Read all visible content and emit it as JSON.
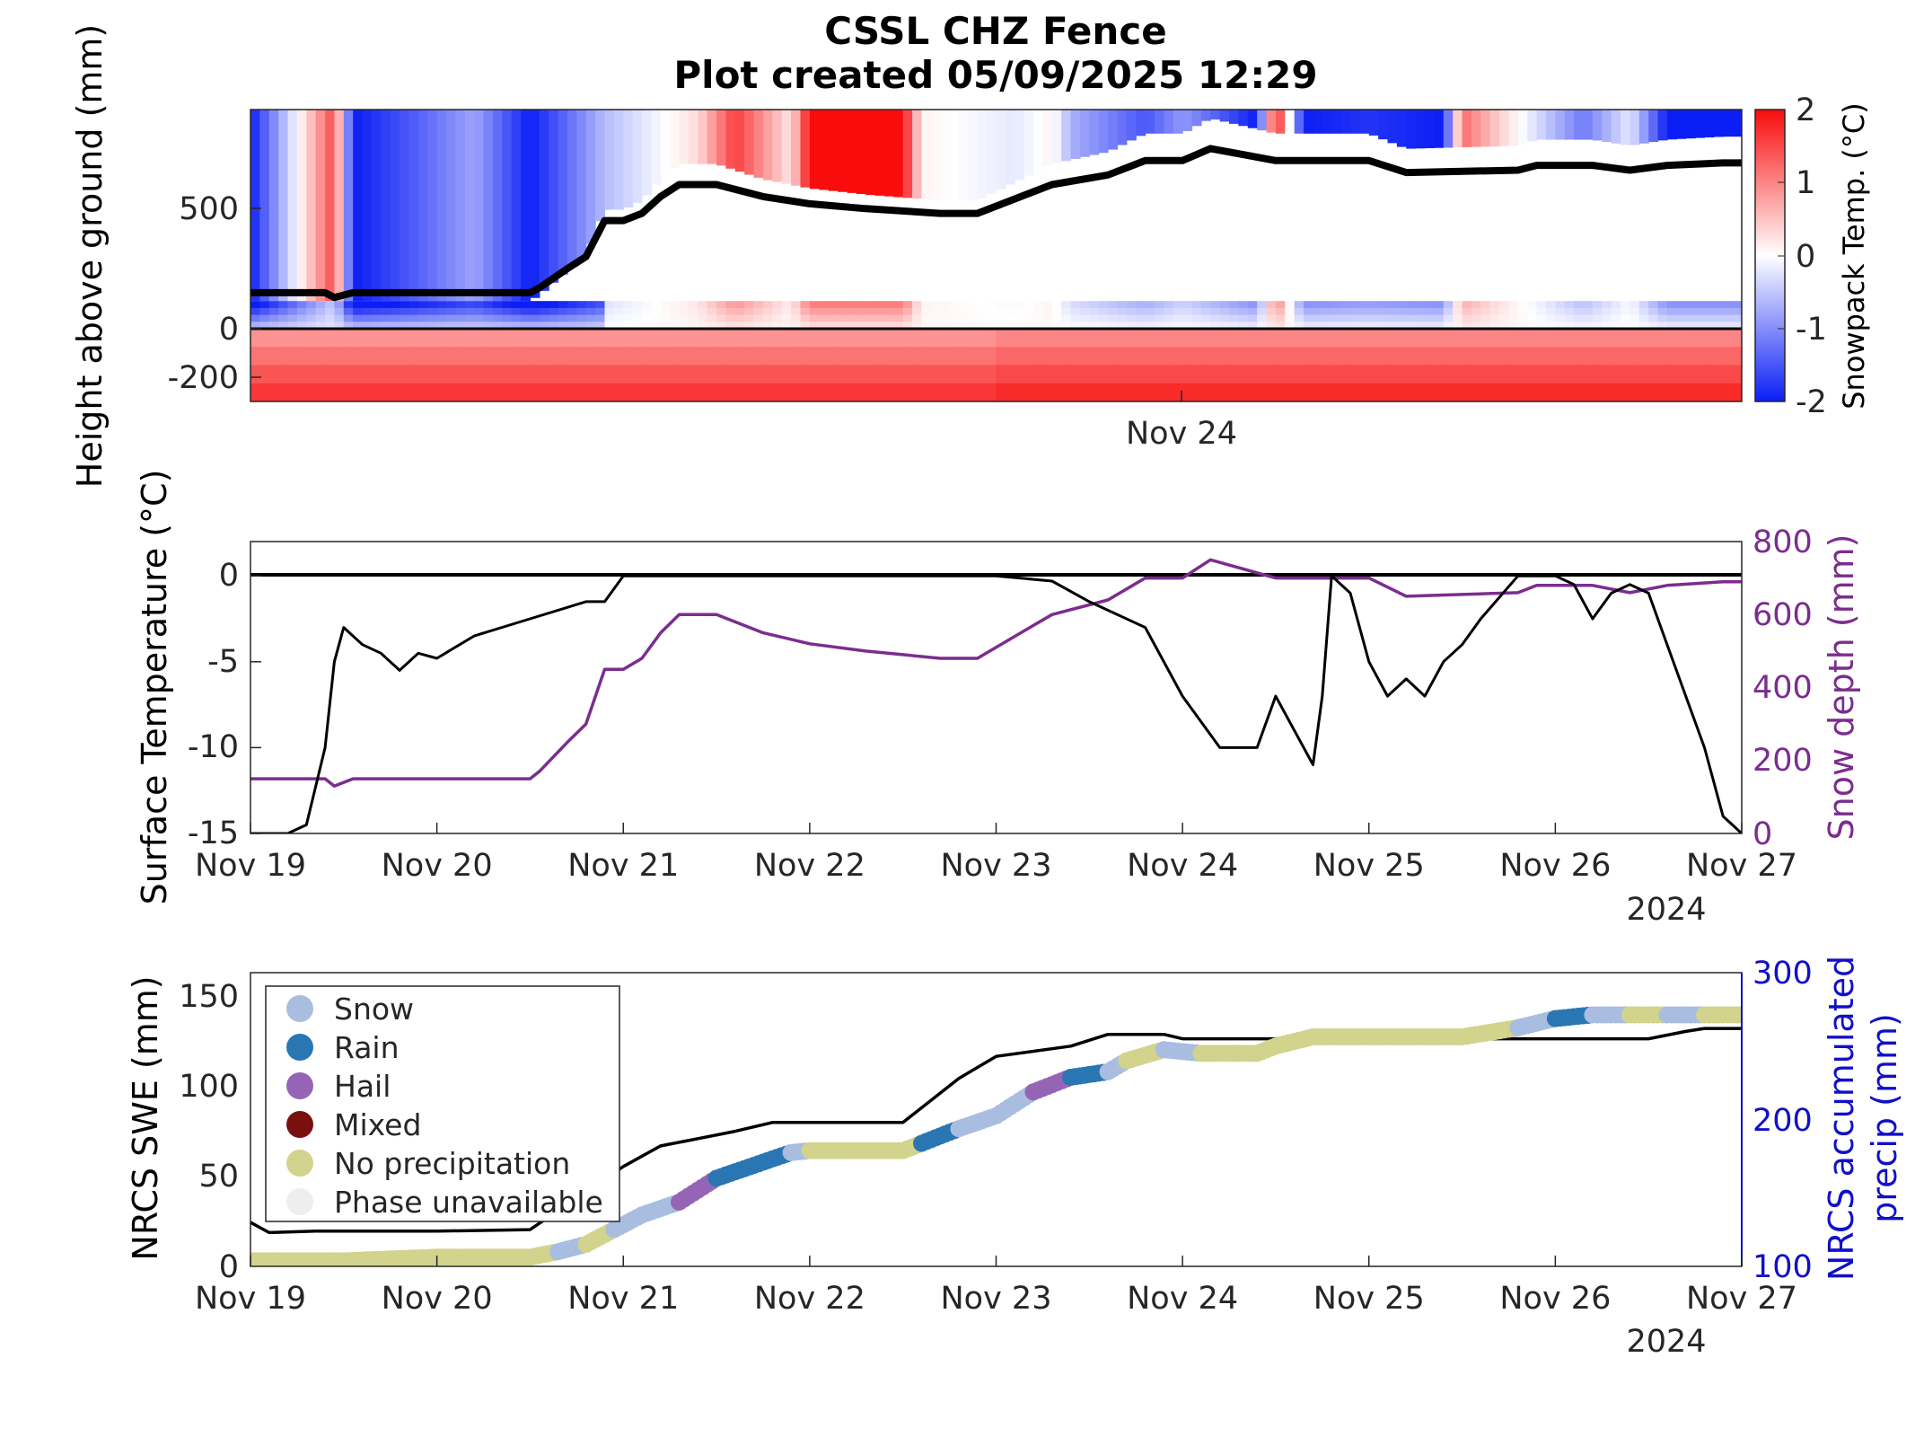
{
  "title_line1": "CSSL CHZ Fence",
  "title_line2": "Plot created 05/09/2025 12:29",
  "colors": {
    "cold": "#0b1ef5",
    "warm": "#f80c0c",
    "purple": "#7b2d8e",
    "blue_axis": "#1010c8",
    "snow": "#a8bde0",
    "rain": "#2a76b2",
    "hail": "#9465b5",
    "mixed": "#7a0f0f",
    "none": "#d2d38c",
    "unavail": "#eeeeee"
  },
  "chart_data": [
    {
      "type": "heatmap",
      "ylabel": "Height above ground (mm)",
      "colorbar_label": "Snowpack Temp. (°C)",
      "colorbar_range": [
        -2,
        2
      ],
      "colorbar_ticks": [
        "2",
        "1",
        "0",
        "-1",
        "-2"
      ],
      "yticks": [
        "500",
        "0",
        "-200"
      ],
      "xtick_labels": [
        "Nov 24"
      ],
      "ylim": [
        -300,
        900
      ],
      "snow_depth_line": {
        "x_days_after_nov19": [
          0,
          0.4,
          0.45,
          0.55,
          1.5,
          1.55,
          1.7,
          1.8,
          1.9,
          2.0,
          2.1,
          2.2,
          2.3,
          2.5,
          2.75,
          3.0,
          3.3,
          3.7,
          3.9,
          4.2,
          4.3,
          4.6,
          4.8,
          5.0,
          5.15,
          5.5,
          5.7,
          6.0,
          6.2,
          6.8,
          6.9,
          7.0,
          7.2,
          7.4,
          7.6,
          7.9,
          8.0
        ],
        "y_mm": [
          150,
          150,
          130,
          150,
          150,
          170,
          250,
          300,
          450,
          450,
          480,
          550,
          600,
          600,
          550,
          520,
          500,
          480,
          480,
          570,
          600,
          640,
          700,
          700,
          750,
          700,
          700,
          700,
          650,
          660,
          680,
          680,
          680,
          660,
          680,
          690,
          690
        ]
      }
    },
    {
      "type": "line",
      "ylabel": "Surface Temperature (°C)",
      "y2label": "Snow depth (mm)",
      "ylim": [
        -15,
        2
      ],
      "y2lim": [
        0,
        800
      ],
      "yticks": [
        "0",
        "-5",
        "-10",
        "-15"
      ],
      "y2ticks": [
        "800",
        "600",
        "400",
        "200",
        "0"
      ],
      "xtick_labels": [
        "Nov 19",
        "Nov 20",
        "Nov 21",
        "Nov 22",
        "Nov 23",
        "Nov 24",
        "Nov 25",
        "Nov 26",
        "Nov 27"
      ],
      "year_label": "2024",
      "surface_temp": {
        "x_days_after_nov19": [
          0,
          0.2,
          0.3,
          0.4,
          0.45,
          0.5,
          0.6,
          0.7,
          0.8,
          0.9,
          1.0,
          1.2,
          1.5,
          1.8,
          1.9,
          2.0,
          2.5,
          3.0,
          3.5,
          4.0,
          4.3,
          4.5,
          4.8,
          5.0,
          5.2,
          5.4,
          5.5,
          5.6,
          5.7,
          5.75,
          5.8,
          5.9,
          6.0,
          6.1,
          6.2,
          6.3,
          6.4,
          6.5,
          6.6,
          6.8,
          6.9,
          7.0,
          7.1,
          7.2,
          7.3,
          7.4,
          7.5,
          7.6,
          7.7,
          7.8,
          7.9,
          7.95,
          8.0
        ],
        "values": [
          -15,
          -15,
          -14.5,
          -10,
          -5,
          -3,
          -4,
          -4.5,
          -5.5,
          -4.5,
          -4.8,
          -3.5,
          -2.5,
          -1.5,
          -1.5,
          0,
          0,
          0,
          0,
          0,
          -0.3,
          -1.5,
          -3,
          -7,
          -10,
          -10,
          -7,
          -9,
          -11,
          -7,
          0,
          -1,
          -5,
          -7,
          -6,
          -7,
          -5,
          -4,
          -2.5,
          0,
          0,
          0,
          -0.5,
          -2.5,
          -1,
          -0.5,
          -1,
          -4,
          -7,
          -10,
          -14,
          -14.5,
          -15
        ]
      }
    },
    {
      "type": "scatter",
      "ylabel": "NRCS SWE (mm)",
      "y2label": "NRCS accumulated precip (mm)",
      "ylim": [
        0,
        160
      ],
      "y2lim": [
        100,
        300
      ],
      "yticks": [
        "150",
        "100",
        "50",
        "0"
      ],
      "y2ticks": [
        "300",
        "200",
        "100"
      ],
      "xtick_labels": [
        "Nov 19",
        "Nov 20",
        "Nov 21",
        "Nov 22",
        "Nov 23",
        "Nov 24",
        "Nov 25",
        "Nov 26",
        "Nov 27"
      ],
      "year_label": "2024",
      "legend": [
        "Snow",
        "Rain",
        "Hail",
        "Mixed",
        "No precipitation",
        "Phase unavailable"
      ],
      "legend_position": "top-left",
      "accumulated_precip": {
        "x_days_after_nov19": [
          0,
          0.1,
          0.35,
          1.0,
          1.5,
          2.0,
          2.2,
          2.4,
          2.6,
          2.8,
          3.0,
          3.5,
          3.8,
          4.0,
          4.4,
          4.6,
          4.9,
          5.0,
          5.5,
          6.0,
          6.5,
          7.0,
          7.5,
          7.7,
          7.8,
          8.0
        ],
        "values": [
          130,
          123,
          124,
          124,
          125,
          168,
          182,
          187,
          192,
          198,
          198,
          198,
          228,
          243,
          250,
          258,
          258,
          255,
          255,
          255,
          255,
          255,
          255,
          260,
          262,
          262
        ]
      },
      "swe_points": {
        "x_days_after_nov19": [
          0,
          0.5,
          1.0,
          1.5,
          1.65,
          1.8,
          1.95,
          2.1,
          2.3,
          2.5,
          2.7,
          2.9,
          3.0,
          3.3,
          3.5,
          3.6,
          3.8,
          4.0,
          4.2,
          4.4,
          4.6,
          4.7,
          4.9,
          5.1,
          5.4,
          5.5,
          5.7,
          6.0,
          6.5,
          6.8,
          7.0,
          7.2,
          7.4,
          7.6,
          7.8,
          8.0
        ],
        "values": [
          3,
          3,
          5,
          5,
          8,
          12,
          20,
          28,
          35,
          48,
          55,
          62,
          63,
          63,
          63,
          67,
          75,
          82,
          95,
          103,
          106,
          112,
          118,
          116,
          116,
          120,
          125,
          125,
          125,
          130,
          135,
          137,
          137,
          137,
          137,
          137
        ],
        "phase": [
          "none",
          "none",
          "none",
          "none",
          "snow",
          "none",
          "snow",
          "snow",
          "hail",
          "rain",
          "rain",
          "snow",
          "none",
          "none",
          "none",
          "rain",
          "snow",
          "snow",
          "hail",
          "rain",
          "snow",
          "none",
          "snow",
          "none",
          "none",
          "none",
          "none",
          "none",
          "none",
          "snow",
          "rain",
          "snow",
          "none",
          "snow",
          "none",
          "none"
        ]
      }
    }
  ]
}
